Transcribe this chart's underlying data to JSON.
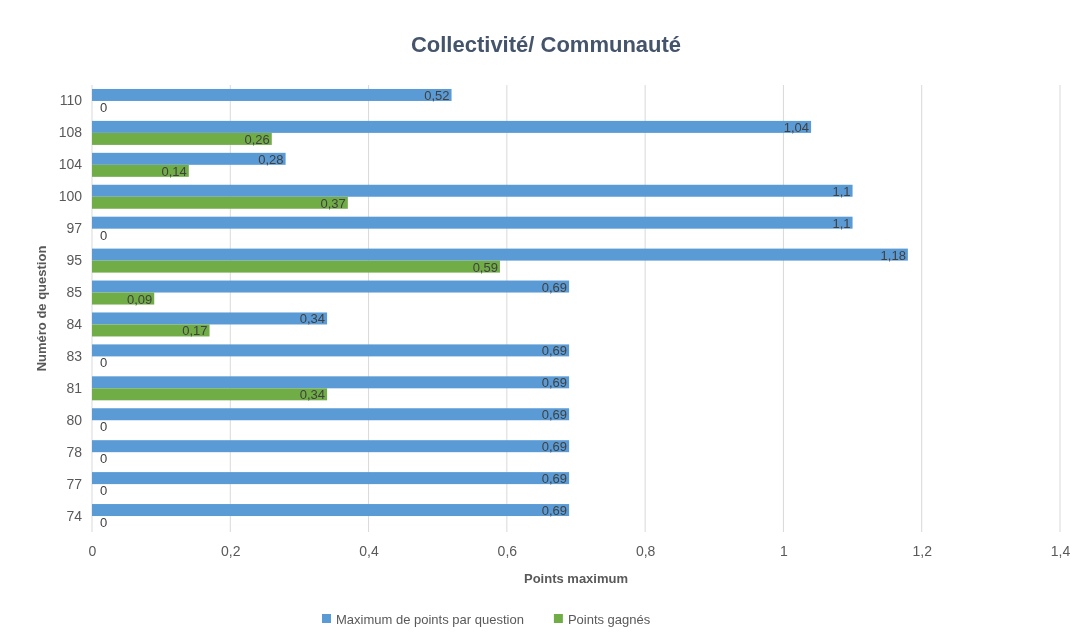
{
  "chart_data": {
    "type": "bar",
    "orientation": "horizontal",
    "title": "Collectivité/ Communauté",
    "xlabel": "Points maximum",
    "ylabel": "Numéro de question",
    "categories": [
      "110",
      "108",
      "104",
      "100",
      "97",
      "95",
      "85",
      "84",
      "83",
      "81",
      "80",
      "78",
      "77",
      "74"
    ],
    "series": [
      {
        "name": "Maximum de points par question",
        "color": "#5b9bd5",
        "values": [
          0.52,
          1.04,
          0.28,
          1.1,
          1.1,
          1.18,
          0.69,
          0.34,
          0.69,
          0.69,
          0.69,
          0.69,
          0.69,
          0.69
        ],
        "value_labels": [
          "0,52",
          "1,04",
          "0,28",
          "1,1",
          "1,1",
          "1,18",
          "0,69",
          "0,34",
          "0,69",
          "0,69",
          "0,69",
          "0,69",
          "0,69",
          "0,69"
        ]
      },
      {
        "name": "Points gagnés",
        "color": "#70ad47",
        "values": [
          0,
          0.26,
          0.14,
          0.37,
          0,
          0.59,
          0.09,
          0.17,
          0,
          0.34,
          0,
          0,
          0,
          0
        ],
        "value_labels": [
          "0",
          "0,26",
          "0,14",
          "0,37",
          "0",
          "0,59",
          "0,09",
          "0,17",
          "0",
          "0,34",
          "0",
          "0",
          "0",
          "0"
        ]
      }
    ],
    "xlim": [
      0,
      1.4
    ],
    "xticks": [
      0,
      {
        "value": 0.2,
        "label": "0,2"
      },
      {
        "value": 0.4,
        "label": "0,4"
      },
      {
        "value": 0.6,
        "label": "0,6"
      },
      {
        "value": 0.8,
        "label": "0,8"
      },
      1,
      {
        "value": 1.2,
        "label": "1,2"
      },
      {
        "value": 1.4,
        "label": "1,4"
      }
    ],
    "grid": "x",
    "legend": "bottom"
  }
}
